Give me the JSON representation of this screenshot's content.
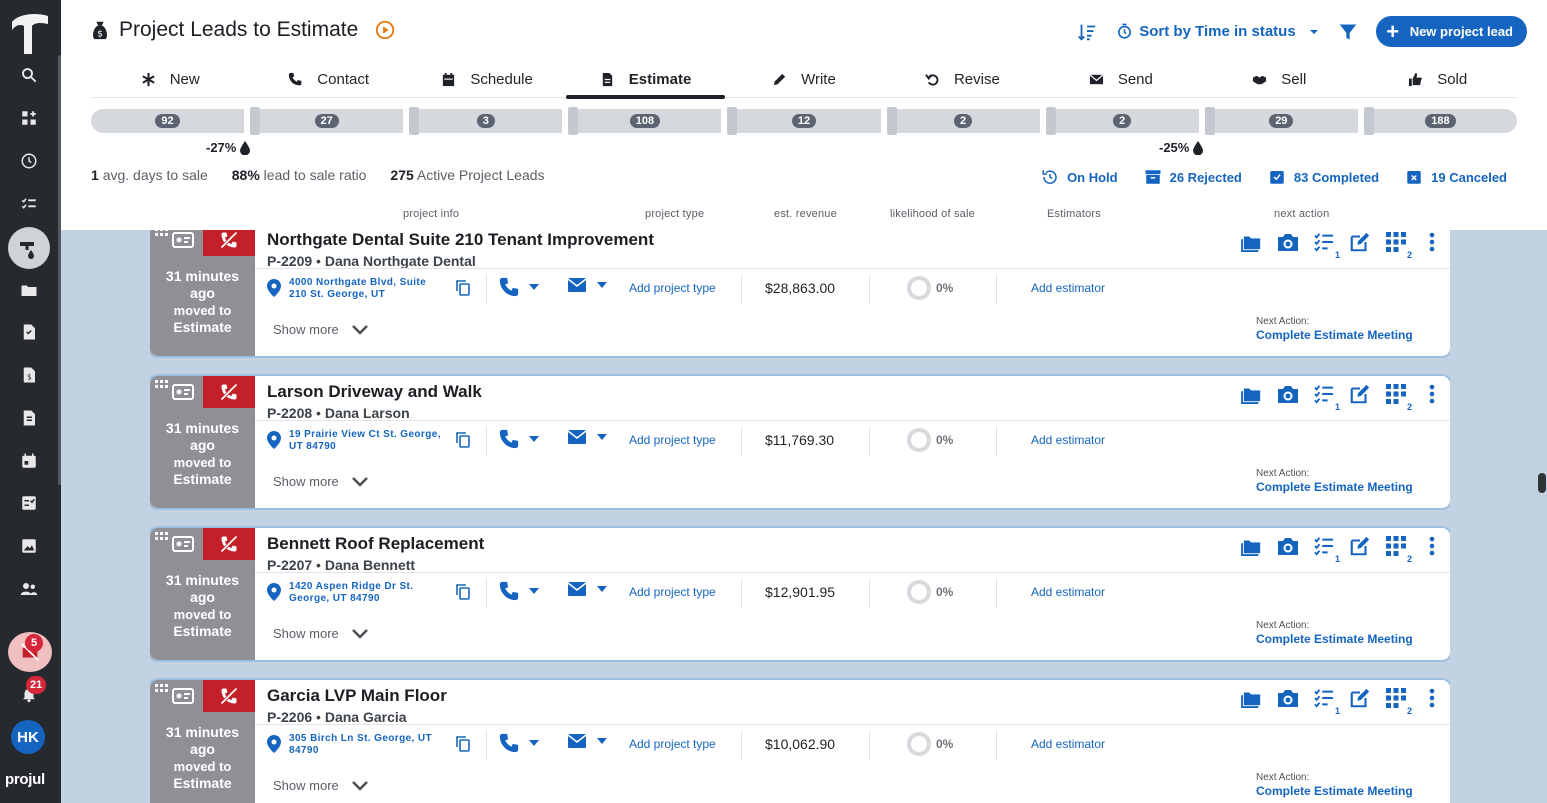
{
  "sidebar": {
    "brand": "projul",
    "alert_badge": "5",
    "notification_badge": "21",
    "avatar_initials": "HK"
  },
  "header": {
    "title": "Project Leads to Estimate",
    "sort_label": "Sort by Time in status",
    "new_button": "New project lead"
  },
  "tabs": [
    {
      "label": "New",
      "icon": "asterisk-icon"
    },
    {
      "label": "Contact",
      "icon": "phone-icon"
    },
    {
      "label": "Schedule",
      "icon": "calendar-icon"
    },
    {
      "label": "Estimate",
      "icon": "document-icon"
    },
    {
      "label": "Write",
      "icon": "pencil-icon"
    },
    {
      "label": "Revise",
      "icon": "undo-icon"
    },
    {
      "label": "Send",
      "icon": "envelope-icon"
    },
    {
      "label": "Sell",
      "icon": "handshake-icon"
    },
    {
      "label": "Sold",
      "icon": "thumbs-up-icon"
    }
  ],
  "active_tab": "Estimate",
  "pipeline": {
    "counts": [
      "92",
      "27",
      "3",
      "108",
      "12",
      "2",
      "2",
      "29",
      "188"
    ],
    "drop_left": "-27%",
    "drop_right": "-25%"
  },
  "stats": {
    "avg_days_value": "1",
    "avg_days_label": "avg. days to sale",
    "ratio_value": "88%",
    "ratio_label": "lead to sale ratio",
    "active_value": "275",
    "active_label": "Active Project Leads"
  },
  "status_links": {
    "on_hold": "On Hold",
    "rejected": "26 Rejected",
    "completed": "83 Completed",
    "canceled": "19 Canceled"
  },
  "columns": {
    "project_info": "project info",
    "project_type": "project type",
    "est_revenue": "est. revenue",
    "likelihood": "likelihood of sale",
    "estimators": "Estimators",
    "next_action": "next action"
  },
  "card_common": {
    "age_line1": "31 minutes",
    "age_line2": "ago",
    "age_line3": "moved to",
    "age_line4": "Estimate",
    "add_project_type": "Add project type",
    "likelihood": "0%",
    "add_estimator": "Add estimator",
    "show_more": "Show more",
    "next_label": "Next Action:",
    "next_action": "Complete Estimate Meeting",
    "checklist_count": "1",
    "grid_count": "2"
  },
  "cards": [
    {
      "name": "Northgate Dental Suite 210 Tenant Improvement",
      "id": "P-2209",
      "contact": "Dana Northgate Dental",
      "address": "4000 Northgate Blvd, Suite 210 St. George, UT",
      "revenue": "$28,863.00"
    },
    {
      "name": "Larson Driveway and Walk",
      "id": "P-2208",
      "contact": "Dana Larson",
      "address": "19 Prairie View Ct St. George, UT 84790",
      "revenue": "$11,769.30"
    },
    {
      "name": "Bennett Roof Replacement",
      "id": "P-2207",
      "contact": "Dana Bennett",
      "address": "1420 Aspen Ridge Dr St. George, UT 84790",
      "revenue": "$12,901.95"
    },
    {
      "name": "Garcia LVP Main Floor",
      "id": "P-2206",
      "contact": "Dana Garcia",
      "address": "305 Birch Ln St. George, UT 84790",
      "revenue": "$10,062.90"
    }
  ],
  "colors": {
    "accent": "#1565c0",
    "sidebar": "#262a2f",
    "flag_red": "#c4202a",
    "card_left": "#8e9095",
    "page_bg": "#c3d2e2"
  }
}
